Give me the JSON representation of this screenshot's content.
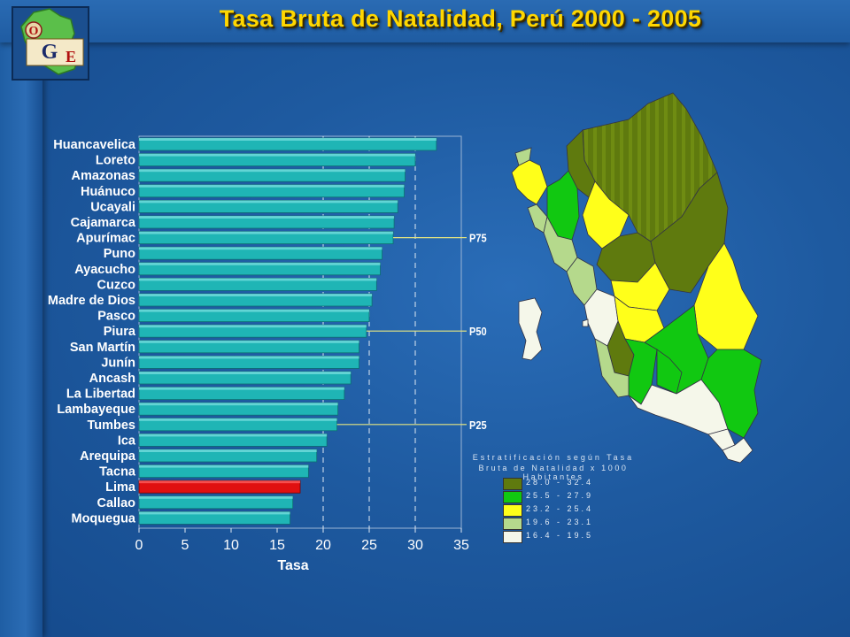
{
  "title": "Tasa Bruta de Natalidad, Perú 2000 - 2005",
  "logo": {
    "letters": [
      "O",
      "G",
      "E"
    ]
  },
  "chart_data": {
    "type": "bar",
    "orientation": "horizontal",
    "xlabel": "Tasa",
    "xlim": [
      0,
      35
    ],
    "xticks": [
      0,
      5,
      10,
      15,
      20,
      25,
      30,
      35
    ],
    "grid_x_dashed": [
      20,
      25,
      30
    ],
    "categories": [
      "Huancavelica",
      "Loreto",
      "Amazonas",
      "Huánuco",
      "Ucayali",
      "Cajamarca",
      "Apurímac",
      "Puno",
      "Ayacucho",
      "Cuzco",
      "Madre de Dios",
      "Pasco",
      "Piura",
      "San Martín",
      "Junín",
      "Ancash",
      "La Libertad",
      "Lambayeque",
      "Tumbes",
      "Ica",
      "Arequipa",
      "Tacna",
      "Lima",
      "Callao",
      "Moquegua"
    ],
    "values": [
      32.3,
      30.0,
      28.9,
      28.8,
      28.1,
      27.7,
      27.6,
      26.4,
      26.2,
      25.8,
      25.3,
      25.0,
      24.7,
      23.9,
      23.9,
      23.0,
      22.3,
      21.6,
      21.5,
      20.4,
      19.3,
      18.4,
      17.5,
      16.7,
      16.4
    ],
    "highlight": "Lima",
    "bar_color": "#1fb5b5",
    "highlight_color": "#e01010",
    "percentiles": [
      {
        "label": "P75",
        "at": "Apurímac"
      },
      {
        "label": "P50",
        "at": "Piura"
      },
      {
        "label": "P25",
        "at": "Tumbes"
      }
    ]
  },
  "legend": {
    "title_line1": "Estratificación según Tasa",
    "title_line2": "Bruta de Natalidad x 1000 Habitantes",
    "items": [
      {
        "label": "28.0 - 32.4",
        "color": "#5f7a0e"
      },
      {
        "label": "25.5 - 27.9",
        "color": "#11c811"
      },
      {
        "label": "23.2 - 25.4",
        "color": "#ffff1a"
      },
      {
        "label": "19.6 - 23.1",
        "color": "#b5d98c"
      },
      {
        "label": "16.4 - 19.5",
        "color": "#f5f7ea"
      }
    ]
  }
}
